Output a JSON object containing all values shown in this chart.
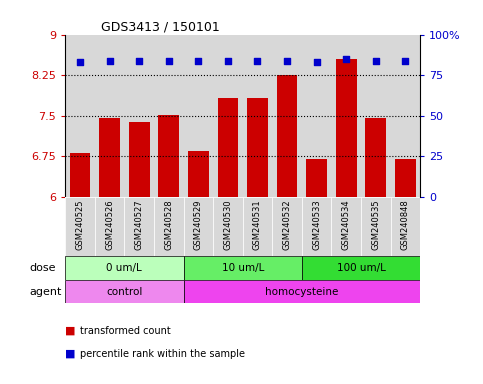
{
  "title": "GDS3413 / 150101",
  "samples": [
    "GSM240525",
    "GSM240526",
    "GSM240527",
    "GSM240528",
    "GSM240529",
    "GSM240530",
    "GSM240531",
    "GSM240532",
    "GSM240533",
    "GSM240534",
    "GSM240535",
    "GSM240848"
  ],
  "bar_values": [
    6.8,
    7.45,
    7.38,
    7.52,
    6.85,
    7.82,
    7.82,
    8.25,
    6.7,
    8.55,
    7.45,
    6.7
  ],
  "percentile_values": [
    83,
    84,
    84,
    84,
    84,
    84,
    84,
    84,
    83,
    85,
    84,
    84
  ],
  "bar_color": "#cc0000",
  "dot_color": "#0000cc",
  "ylim_left": [
    6,
    9
  ],
  "ylim_right": [
    0,
    100
  ],
  "yticks_left": [
    6,
    6.75,
    7.5,
    8.25,
    9
  ],
  "yticks_right": [
    0,
    25,
    50,
    75,
    100
  ],
  "ytick_labels_right": [
    "0",
    "25",
    "50",
    "75",
    "100%"
  ],
  "hlines": [
    6.75,
    7.5,
    8.25
  ],
  "dose_groups": [
    {
      "label": "0 um/L",
      "start": 0,
      "end": 4,
      "color": "#bbffbb"
    },
    {
      "label": "10 um/L",
      "start": 4,
      "end": 8,
      "color": "#66ee66"
    },
    {
      "label": "100 um/L",
      "start": 8,
      "end": 12,
      "color": "#33dd33"
    }
  ],
  "agent_groups": [
    {
      "label": "control",
      "start": 0,
      "end": 4,
      "color": "#ee88ee"
    },
    {
      "label": "homocysteine",
      "start": 4,
      "end": 12,
      "color": "#ee44ee"
    }
  ],
  "dose_label": "dose",
  "agent_label": "agent",
  "legend_bar_label": "transformed count",
  "legend_dot_label": "percentile rank within the sample",
  "bar_color_red": "#cc0000",
  "dot_color_blue": "#0000cc",
  "ylabel_left_color": "#cc0000",
  "ylabel_right_color": "#0000cc",
  "bar_width": 0.7,
  "col_bg": "#d8d8d8",
  "plot_bg": "#ffffff"
}
